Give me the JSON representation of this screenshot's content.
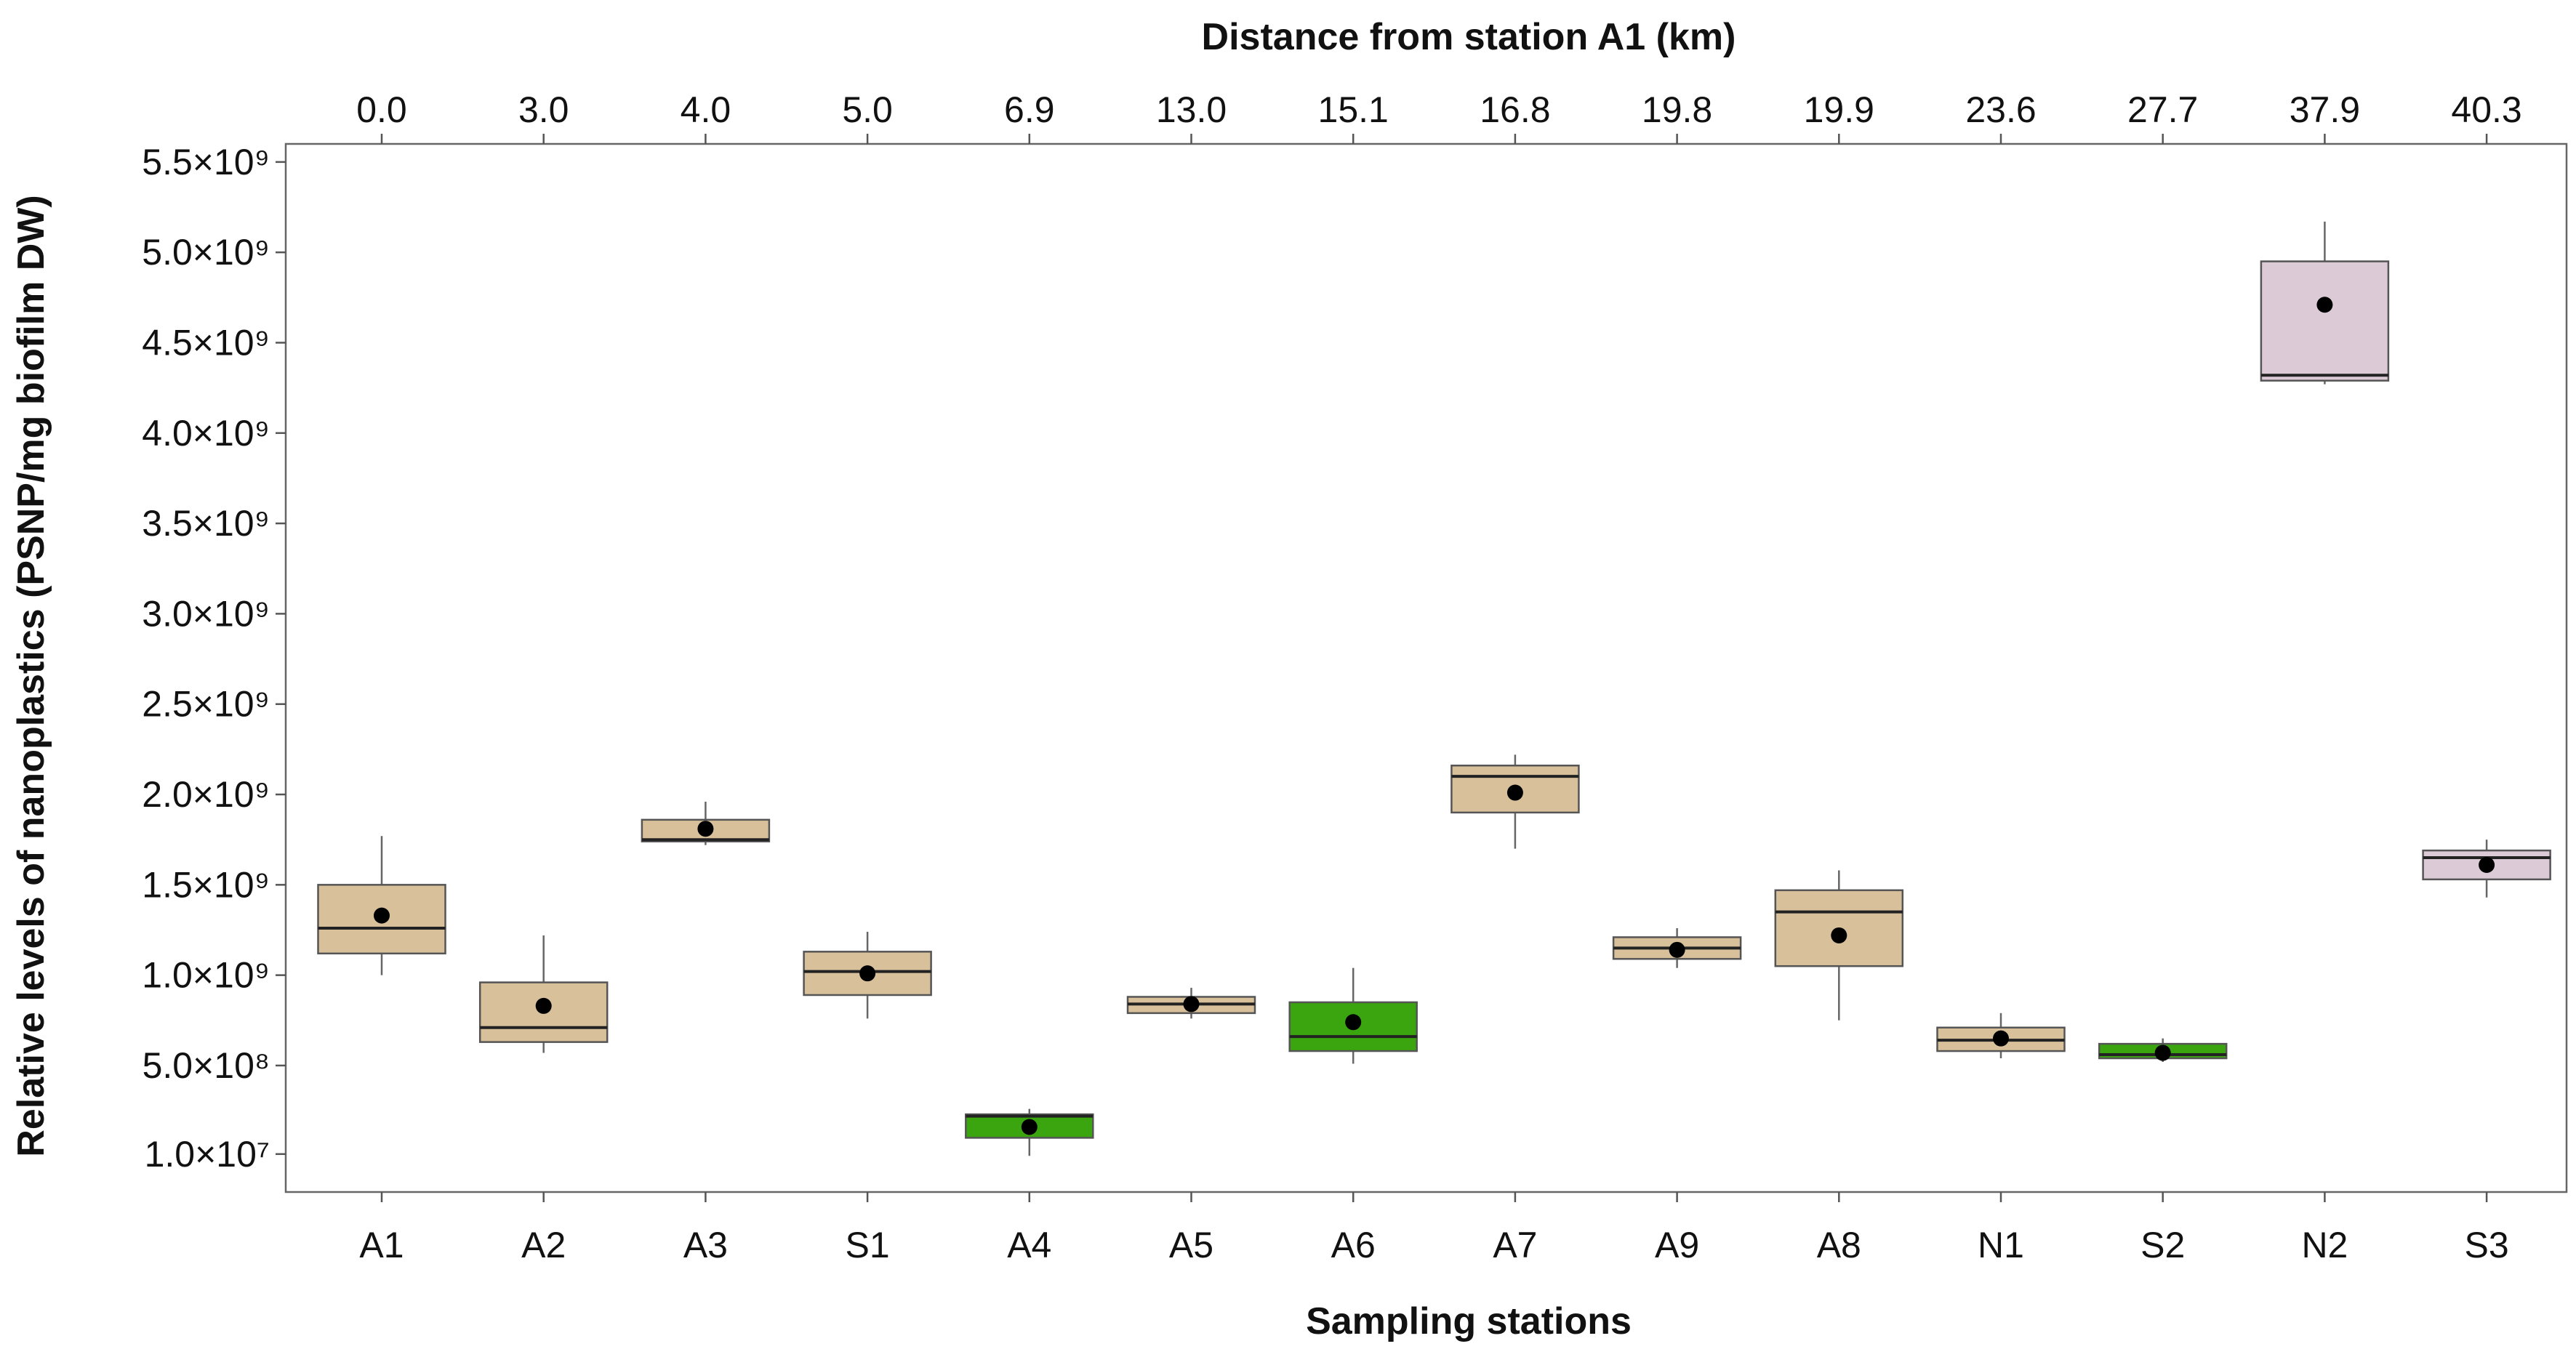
{
  "chart_data": {
    "type": "box",
    "xlabel": "Sampling stations",
    "ylabel": "Relative levels of nanoplastics (PSNP/mg biofilm DW)",
    "secondary_xlabel": "Distance from station A1 (km)",
    "ylim": [
      -200000000.0,
      5600000000.0
    ],
    "y_ticks": [
      {
        "value": 10000000.0,
        "label": "1.0×10⁷"
      },
      {
        "value": 500000000.0,
        "label": "5.0×10⁸"
      },
      {
        "value": 1000000000.0,
        "label": "1.0×10⁹"
      },
      {
        "value": 1500000000.0,
        "label": "1.5×10⁹"
      },
      {
        "value": 2000000000.0,
        "label": "2.0×10⁹"
      },
      {
        "value": 2500000000.0,
        "label": "2.5×10⁹"
      },
      {
        "value": 3000000000.0,
        "label": "3.0×10⁹"
      },
      {
        "value": 3500000000.0,
        "label": "3.5×10⁹"
      },
      {
        "value": 4000000000.0,
        "label": "4.0×10⁹"
      },
      {
        "value": 4500000000.0,
        "label": "4.5×10⁹"
      },
      {
        "value": 5000000000.0,
        "label": "5.0×10⁹"
      },
      {
        "value": 5500000000.0,
        "label": "5.5×10⁹"
      }
    ],
    "grid": false,
    "legend": "none",
    "colors": {
      "tan": "#d7c09a",
      "green": "#3aa50f",
      "mauve": "#dccbd6",
      "box_edge": "#555555",
      "median": "#222222",
      "mean_dot": "#000000"
    },
    "stations": [
      {
        "name": "A1",
        "distance": "0.0",
        "min": 1000000000.0,
        "q1": 1120000000.0,
        "median": 1260000000.0,
        "q3": 1500000000.0,
        "max": 1770000000.0,
        "mean": 1330000000.0,
        "color": "tan"
      },
      {
        "name": "A2",
        "distance": "3.0",
        "min": 570000000.0,
        "q1": 630000000.0,
        "median": 710000000.0,
        "q3": 960000000.0,
        "max": 1220000000.0,
        "mean": 830000000.0,
        "color": "tan"
      },
      {
        "name": "A3",
        "distance": "4.0",
        "min": 1720000000.0,
        "q1": 1740000000.0,
        "median": 1750000000.0,
        "q3": 1860000000.0,
        "max": 1960000000.0,
        "mean": 1810000000.0,
        "color": "tan"
      },
      {
        "name": "S1",
        "distance": "5.0",
        "min": 760000000.0,
        "q1": 890000000.0,
        "median": 1020000000.0,
        "q3": 1130000000.0,
        "max": 1240000000.0,
        "mean": 1010000000.0,
        "color": "tan"
      },
      {
        "name": "A4",
        "distance": "6.9",
        "min": 0.0,
        "q1": 100000000.0,
        "median": 220000000.0,
        "q3": 230000000.0,
        "max": 260000000.0,
        "mean": 160000000.0,
        "color": "green"
      },
      {
        "name": "A5",
        "distance": "13.0",
        "min": 760000000.0,
        "q1": 790000000.0,
        "median": 840000000.0,
        "q3": 880000000.0,
        "max": 930000000.0,
        "mean": 840000000.0,
        "color": "tan"
      },
      {
        "name": "A6",
        "distance": "15.1",
        "min": 510000000.0,
        "q1": 580000000.0,
        "median": 660000000.0,
        "q3": 850000000.0,
        "max": 1040000000.0,
        "mean": 740000000.0,
        "color": "green"
      },
      {
        "name": "A7",
        "distance": "16.8",
        "min": 1700000000.0,
        "q1": 1900000000.0,
        "median": 2100000000.0,
        "q3": 2160000000.0,
        "max": 2220000000.0,
        "mean": 2010000000.0,
        "color": "tan"
      },
      {
        "name": "A9",
        "distance": "19.8",
        "min": 1040000000.0,
        "q1": 1090000000.0,
        "median": 1150000000.0,
        "q3": 1210000000.0,
        "max": 1260000000.0,
        "mean": 1140000000.0,
        "color": "tan"
      },
      {
        "name": "A8",
        "distance": "19.9",
        "min": 750000000.0,
        "q1": 1050000000.0,
        "median": 1350000000.0,
        "q3": 1470000000.0,
        "max": 1580000000.0,
        "mean": 1220000000.0,
        "color": "tan"
      },
      {
        "name": "N1",
        "distance": "23.6",
        "min": 540000000.0,
        "q1": 580000000.0,
        "median": 640000000.0,
        "q3": 710000000.0,
        "max": 790000000.0,
        "mean": 650000000.0,
        "color": "tan"
      },
      {
        "name": "S2",
        "distance": "27.7",
        "min": 520000000.0,
        "q1": 540000000.0,
        "median": 560000000.0,
        "q3": 620000000.0,
        "max": 650000000.0,
        "mean": 570000000.0,
        "color": "green"
      },
      {
        "name": "N2",
        "distance": "37.9",
        "min": 4270000000.0,
        "q1": 4290000000.0,
        "median": 4320000000.0,
        "q3": 4950000000.0,
        "max": 5170000000.0,
        "mean": 4710000000.0,
        "color": "mauve"
      },
      {
        "name": "S3",
        "distance": "40.3",
        "min": 1430000000.0,
        "q1": 1530000000.0,
        "median": 1650000000.0,
        "q3": 1690000000.0,
        "max": 1750000000.0,
        "mean": 1610000000.0,
        "color": "mauve"
      }
    ]
  }
}
